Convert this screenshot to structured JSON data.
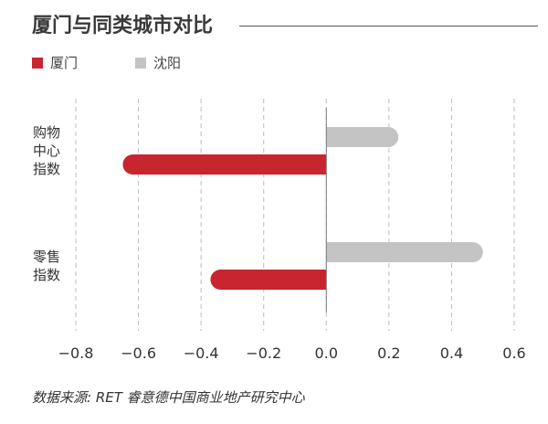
{
  "title": "厦门与同类城市对比",
  "legend": [
    {
      "label": "厦门",
      "color": "#c8252f"
    },
    {
      "label": "沈阳",
      "color": "#c4c4c4"
    }
  ],
  "source": "数据来源: RET 睿意德中国商业地产研究中心",
  "chart_data": {
    "type": "bar",
    "orientation": "horizontal",
    "categories": [
      {
        "lines": [
          "购物",
          "中心",
          "指数"
        ]
      },
      {
        "lines": [
          "零售",
          "指数"
        ]
      }
    ],
    "series": [
      {
        "name": "厦门",
        "color": "#c8252f",
        "values": [
          -0.65,
          -0.37
        ]
      },
      {
        "name": "沈阳",
        "color": "#c4c4c4",
        "values": [
          0.23,
          0.5
        ]
      }
    ],
    "xlim": [
      -0.8,
      0.6
    ],
    "xticks": [
      "−0.8",
      "−0.6",
      "−0.4",
      "−0.2",
      "0.0",
      "0.2",
      "0.4",
      "0.6"
    ],
    "grid": true
  }
}
